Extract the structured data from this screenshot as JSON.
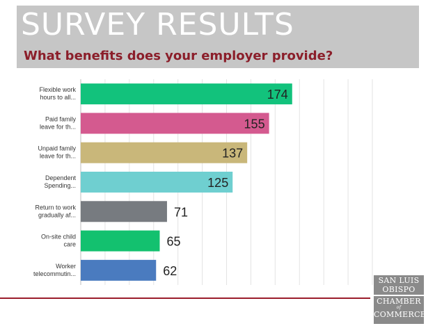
{
  "header": {
    "title": "SURVEY RESULTS",
    "subtitle": "What benefits does your employer provide?"
  },
  "logo": {
    "line1": "SAN LUIS",
    "line2": "OBISPO",
    "line3": "CHAMBER",
    "line4": "of",
    "line5": "COMMERCE"
  },
  "colors": {
    "header_bg": "#c6c6c6",
    "subtitle": "#8b1e2a",
    "rule": "#9a1c2b"
  },
  "chart_data": {
    "type": "bar",
    "orientation": "horizontal",
    "title": "",
    "xlabel": "",
    "ylabel": "",
    "xlim": [
      0,
      240
    ],
    "grid": true,
    "legend": "none",
    "categories": [
      [
        "Flexible work",
        "hours to all..."
      ],
      [
        "Paid family",
        "leave for th..."
      ],
      [
        "Unpaid family",
        "leave for th..."
      ],
      [
        "Dependent",
        "Spending..."
      ],
      [
        "Return to work",
        "gradually af..."
      ],
      [
        "On-site child",
        "care"
      ],
      [
        "Worker",
        "telecommutin..."
      ]
    ],
    "values": [
      174,
      155,
      137,
      125,
      71,
      65,
      62
    ],
    "bar_colors": [
      "#12c27c",
      "#d45a8f",
      "#c9b77a",
      "#6fcfd0",
      "#777b80",
      "#13c16f",
      "#4a7bbf"
    ]
  }
}
